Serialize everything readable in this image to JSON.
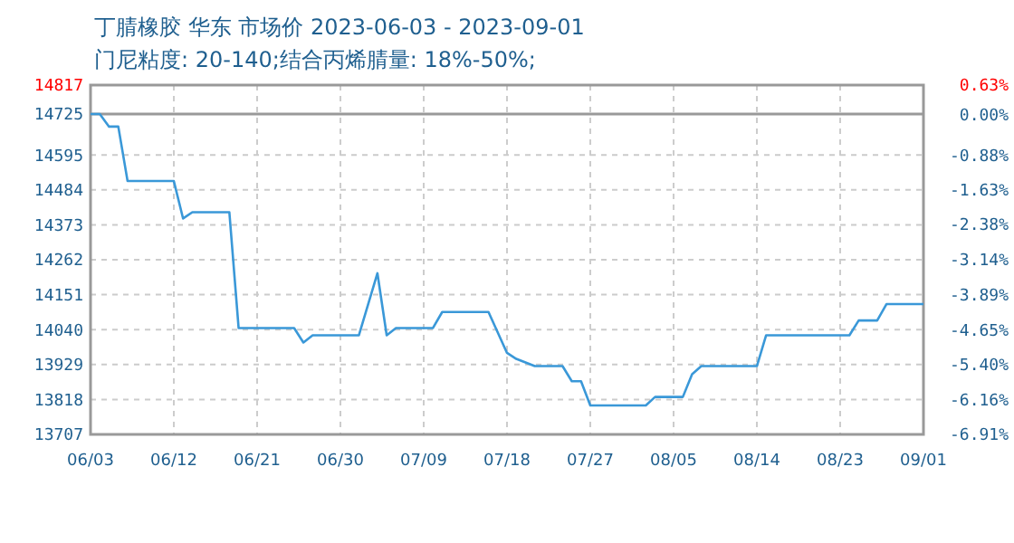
{
  "chart_data": {
    "type": "line",
    "title": "丁腈橡胶 华东 市场价 2023-06-03 - 2023-09-01",
    "subtitle": "门尼粘度: 20-140;结合丙烯腈量: 18%-50%;",
    "x": [
      "2023-06-03",
      "2023-06-04",
      "2023-06-05",
      "2023-06-06",
      "2023-06-07",
      "2023-06-12",
      "2023-06-13",
      "2023-06-14",
      "2023-06-18",
      "2023-06-19",
      "2023-06-25",
      "2023-06-26",
      "2023-06-27",
      "2023-07-02",
      "2023-07-04",
      "2023-07-05",
      "2023-07-06",
      "2023-07-10",
      "2023-07-11",
      "2023-07-16",
      "2023-07-18",
      "2023-07-19",
      "2023-07-21",
      "2023-07-24",
      "2023-07-25",
      "2023-07-26",
      "2023-07-27",
      "2023-08-02",
      "2023-08-03",
      "2023-08-06",
      "2023-08-07",
      "2023-08-08",
      "2023-08-14",
      "2023-08-15",
      "2023-08-24",
      "2023-08-25",
      "2023-08-27",
      "2023-08-28",
      "2023-09-01"
    ],
    "series": [
      {
        "color": "#3a98d8",
        "values": [
          14725,
          14725,
          14685,
          14685,
          14512,
          14512,
          14393,
          14413,
          14413,
          14045,
          14045,
          13999,
          14022,
          14022,
          14219,
          14022,
          14045,
          14045,
          14096,
          14096,
          13966,
          13947,
          13924,
          13924,
          13876,
          13876,
          13799,
          13799,
          13826,
          13826,
          13898,
          13924,
          13924,
          14022,
          14022,
          14069,
          14069,
          14121,
          14121
        ]
      }
    ],
    "xlim": [
      "2023-06-03",
      "2023-09-01"
    ],
    "xticks": [
      {
        "value": "2023-06-03",
        "label": "06/03"
      },
      {
        "value": "2023-06-12",
        "label": "06/12"
      },
      {
        "value": "2023-06-21",
        "label": "06/21"
      },
      {
        "value": "2023-06-30",
        "label": "06/30"
      },
      {
        "value": "2023-07-09",
        "label": "07/09"
      },
      {
        "value": "2023-07-18",
        "label": "07/18"
      },
      {
        "value": "2023-07-27",
        "label": "07/27"
      },
      {
        "value": "2023-08-05",
        "label": "08/05"
      },
      {
        "value": "2023-08-14",
        "label": "08/14"
      },
      {
        "value": "2023-08-23",
        "label": "08/23"
      },
      {
        "value": "2023-09-01",
        "label": "09/01"
      }
    ],
    "ylim": [
      13707,
      14817
    ],
    "yticks": [
      13707,
      13818,
      13929,
      14040,
      14151,
      14262,
      14373,
      14484,
      14595,
      14725,
      14817
    ],
    "y2lim": [
      -6.91,
      0.63
    ],
    "y2ticks": [
      {
        "value": -6.91,
        "label": "-6.91%"
      },
      {
        "value": -6.16,
        "label": "-6.16%"
      },
      {
        "value": -5.4,
        "label": "-5.40%"
      },
      {
        "value": -4.65,
        "label": "-4.65%"
      },
      {
        "value": -3.89,
        "label": "-3.89%"
      },
      {
        "value": -3.14,
        "label": "-3.14%"
      },
      {
        "value": -2.38,
        "label": "-2.38%"
      },
      {
        "value": -1.63,
        "label": "-1.63%"
      },
      {
        "value": -0.88,
        "label": "-0.88%"
      },
      {
        "value": 0,
        "label": "0.00%"
      },
      {
        "value": 0.63,
        "label": "0.63%"
      }
    ],
    "ref_lines": [
      {
        "axis": "y",
        "value": 14725,
        "color": "#999999"
      }
    ],
    "grid": true,
    "marker": "none",
    "line_style": "solid"
  }
}
